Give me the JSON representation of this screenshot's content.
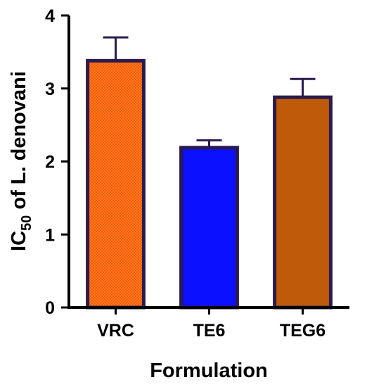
{
  "chart_data": {
    "type": "bar",
    "title": "",
    "xlabel": "Formulation",
    "ylabel_main": "IC",
    "ylabel_sub": "50",
    "ylabel_rest": " of L. denovani",
    "categories": [
      "VRC",
      "TE6",
      "TEG6"
    ],
    "values": [
      3.38,
      2.19,
      2.88
    ],
    "errors": [
      0.32,
      0.1,
      0.25
    ],
    "ylim": [
      0,
      4
    ],
    "yticks": [
      "0",
      "1",
      "2",
      "3",
      "4"
    ],
    "grid": false,
    "legend": "none",
    "colors": {
      "bar_fills": [
        "#ff7a1f",
        "#0b10ff",
        "#bf5a0a"
      ],
      "bar_edge": "#2b1a4d",
      "axis": "#000000"
    }
  }
}
